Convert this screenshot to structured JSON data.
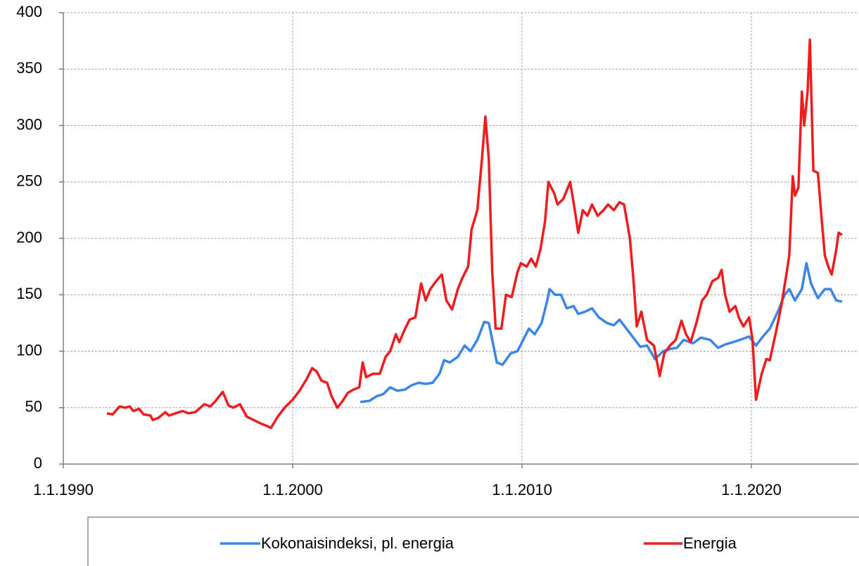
{
  "chart_data": {
    "type": "line",
    "xlim": [
      1990,
      2024.66
    ],
    "ylim": [
      0,
      400
    ],
    "xticks": [
      {
        "value": 1990,
        "label": "1.1.1990"
      },
      {
        "value": 2000,
        "label": "1.1.2000"
      },
      {
        "value": 2010,
        "label": "1.1.2010"
      },
      {
        "value": 2020,
        "label": "1.1.2020"
      }
    ],
    "yticks": [
      0,
      50,
      100,
      150,
      200,
      250,
      300,
      350,
      400
    ],
    "grid": true,
    "legend": "bottom",
    "series": [
      {
        "name": "Kokonaisindeksi, pl. energia",
        "color": "#3a86e8",
        "x": [
          2002.95,
          2003.35,
          2003.65,
          2003.95,
          2004.25,
          2004.55,
          2004.9,
          2005.2,
          2005.5,
          2005.8,
          2006.1,
          2006.4,
          2006.6,
          2006.85,
          2007.2,
          2007.5,
          2007.75,
          2008.05,
          2008.35,
          2008.55,
          2008.7,
          2008.9,
          2009.15,
          2009.5,
          2009.8,
          2010.1,
          2010.3,
          2010.55,
          2010.85,
          2011.1,
          2011.2,
          2011.45,
          2011.7,
          2011.95,
          2012.25,
          2012.45,
          2012.75,
          2013.05,
          2013.35,
          2013.7,
          2014.0,
          2014.25,
          2014.55,
          2014.85,
          2015.15,
          2015.45,
          2015.8,
          2016.15,
          2016.45,
          2016.75,
          2017.05,
          2017.45,
          2017.8,
          2018.2,
          2018.55,
          2018.85,
          2019.2,
          2019.5,
          2019.9,
          2020.2,
          2020.5,
          2020.8,
          2021.15,
          2021.45,
          2021.65,
          2021.9,
          2022.2,
          2022.4,
          2022.6,
          2022.9,
          2023.2,
          2023.45,
          2023.7,
          2023.95
        ],
        "values": [
          55,
          56,
          60,
          62,
          68,
          65,
          66,
          70,
          72,
          71,
          72,
          80,
          92,
          90,
          95,
          105,
          100,
          110,
          126,
          125,
          110,
          90,
          88,
          98,
          100,
          112,
          120,
          115,
          125,
          145,
          155,
          150,
          150,
          138,
          140,
          133,
          135,
          138,
          130,
          125,
          123,
          128,
          120,
          112,
          104,
          105,
          93,
          100,
          102,
          103,
          110,
          107,
          112,
          110,
          103,
          106,
          108,
          110,
          113,
          105,
          113,
          120,
          135,
          150,
          155,
          145,
          155,
          178,
          160,
          147,
          155,
          155,
          145,
          144
        ]
      },
      {
        "name": "Energia",
        "color": "#ee1c1c",
        "x": [
          1991.9,
          1992.15,
          1992.45,
          1992.7,
          1992.9,
          1993.05,
          1993.3,
          1993.5,
          1993.8,
          1993.9,
          1994.15,
          1994.45,
          1994.6,
          1994.9,
          1995.2,
          1995.45,
          1995.75,
          1996.15,
          1996.4,
          1996.6,
          1996.95,
          1997.2,
          1997.4,
          1997.7,
          1998.0,
          1998.3,
          1998.6,
          1998.85,
          1999.05,
          1999.35,
          1999.65,
          2000.0,
          2000.3,
          2000.6,
          2000.85,
          2001.05,
          2001.25,
          2001.5,
          2001.7,
          2001.95,
          2002.15,
          2002.4,
          2002.65,
          2002.9,
          2003.05,
          2003.2,
          2003.5,
          2003.8,
          2004.05,
          2004.25,
          2004.5,
          2004.65,
          2004.9,
          2005.1,
          2005.35,
          2005.6,
          2005.8,
          2006.0,
          2006.25,
          2006.5,
          2006.7,
          2006.95,
          2007.2,
          2007.4,
          2007.65,
          2007.8,
          2008.05,
          2008.25,
          2008.4,
          2008.55,
          2008.7,
          2008.85,
          2009.1,
          2009.3,
          2009.55,
          2009.8,
          2009.95,
          2010.2,
          2010.4,
          2010.6,
          2010.8,
          2011.0,
          2011.15,
          2011.4,
          2011.55,
          2011.8,
          2012.1,
          2012.3,
          2012.45,
          2012.65,
          2012.85,
          2013.05,
          2013.3,
          2013.55,
          2013.75,
          2014.0,
          2014.25,
          2014.45,
          2014.7,
          2014.85,
          2015.0,
          2015.2,
          2015.45,
          2015.75,
          2016.0,
          2016.2,
          2016.45,
          2016.7,
          2016.95,
          2017.15,
          2017.35,
          2017.6,
          2017.85,
          2018.05,
          2018.3,
          2018.55,
          2018.7,
          2018.85,
          2019.05,
          2019.3,
          2019.45,
          2019.65,
          2019.9,
          2020.05,
          2020.2,
          2020.45,
          2020.65,
          2020.8,
          2021.05,
          2021.3,
          2021.5,
          2021.65,
          2021.8,
          2021.9,
          2022.05,
          2022.2,
          2022.3,
          2022.45,
          2022.55,
          2022.7,
          2022.9,
          2023.05,
          2023.2,
          2023.35,
          2023.5,
          2023.7,
          2023.8,
          2023.95
        ],
        "values": [
          45,
          44,
          51,
          50,
          51,
          47,
          49,
          44,
          43,
          39,
          41,
          46,
          43,
          45,
          47,
          45,
          46,
          53,
          51,
          55,
          64,
          52,
          50,
          53,
          42,
          39,
          36,
          34,
          32,
          42,
          50,
          57,
          65,
          75,
          85,
          82,
          74,
          72,
          60,
          50,
          55,
          63,
          66,
          68,
          90,
          77,
          80,
          80,
          95,
          100,
          115,
          108,
          120,
          128,
          130,
          160,
          145,
          155,
          162,
          168,
          145,
          137,
          155,
          165,
          175,
          208,
          225,
          270,
          308,
          270,
          170,
          120,
          120,
          150,
          148,
          170,
          178,
          175,
          182,
          175,
          190,
          215,
          250,
          240,
          230,
          235,
          250,
          225,
          205,
          225,
          220,
          230,
          220,
          225,
          230,
          225,
          232,
          230,
          200,
          165,
          122,
          135,
          110,
          105,
          78,
          98,
          105,
          110,
          127,
          115,
          108,
          125,
          145,
          150,
          162,
          165,
          172,
          150,
          135,
          140,
          130,
          122,
          130,
          110,
          57,
          80,
          93,
          92,
          115,
          140,
          165,
          185,
          255,
          238,
          245,
          330,
          300,
          330,
          376,
          260,
          258,
          220,
          185,
          175,
          168,
          190,
          205,
          203
        ]
      }
    ]
  }
}
